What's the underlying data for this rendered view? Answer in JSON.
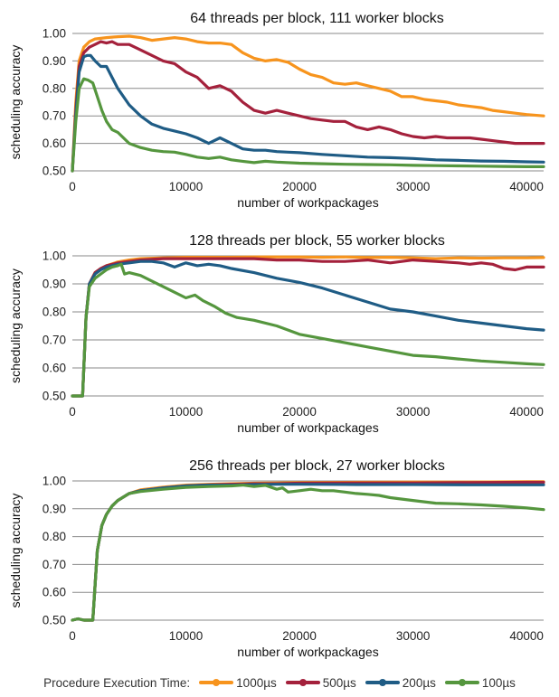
{
  "chart_data": [
    {
      "type": "line",
      "title": "64 threads per block, 111 worker blocks",
      "xlabel": "number of workpackages",
      "ylabel": "scheduling accuracy",
      "xlim": [
        0,
        41500
      ],
      "ylim": [
        0.5,
        1.0
      ],
      "xticks": [
        "0",
        "10000",
        "20000",
        "30000",
        "40000"
      ],
      "yticks": [
        "0.50",
        "0.60",
        "0.70",
        "0.80",
        "0.90",
        "1.00"
      ],
      "grid": true,
      "series": [
        {
          "name": "1000µs",
          "x": [
            0,
            300,
            600,
            1000,
            1500,
            2000,
            3000,
            4000,
            5000,
            6000,
            7000,
            8000,
            9000,
            10000,
            11000,
            12000,
            13000,
            14000,
            15000,
            16000,
            17000,
            18000,
            19000,
            20000,
            21000,
            22000,
            23000,
            24000,
            25000,
            26000,
            27000,
            28000,
            29000,
            30000,
            31000,
            32000,
            33000,
            34000,
            35000,
            36000,
            37000,
            38000,
            39000,
            40000,
            41500
          ],
          "y": [
            0.5,
            0.75,
            0.9,
            0.95,
            0.97,
            0.98,
            0.985,
            0.988,
            0.99,
            0.985,
            0.975,
            0.98,
            0.985,
            0.98,
            0.97,
            0.965,
            0.965,
            0.96,
            0.93,
            0.91,
            0.9,
            0.905,
            0.895,
            0.87,
            0.85,
            0.84,
            0.82,
            0.815,
            0.82,
            0.81,
            0.8,
            0.79,
            0.77,
            0.77,
            0.76,
            0.755,
            0.75,
            0.74,
            0.735,
            0.73,
            0.72,
            0.715,
            0.71,
            0.705,
            0.7
          ]
        },
        {
          "name": "500µs",
          "x": [
            0,
            300,
            600,
            1000,
            1500,
            2000,
            2500,
            3000,
            3500,
            4000,
            5000,
            6000,
            7000,
            8000,
            9000,
            10000,
            11000,
            12000,
            13000,
            14000,
            15000,
            16000,
            17000,
            18000,
            19000,
            20000,
            21000,
            22000,
            23000,
            24000,
            25000,
            26000,
            27000,
            28000,
            29000,
            30000,
            31000,
            32000,
            33000,
            34000,
            35000,
            36000,
            37000,
            38000,
            39000,
            40000,
            41500
          ],
          "y": [
            0.5,
            0.72,
            0.88,
            0.93,
            0.95,
            0.96,
            0.97,
            0.965,
            0.97,
            0.96,
            0.96,
            0.94,
            0.92,
            0.9,
            0.89,
            0.86,
            0.84,
            0.8,
            0.81,
            0.79,
            0.75,
            0.72,
            0.71,
            0.72,
            0.71,
            0.7,
            0.69,
            0.685,
            0.68,
            0.68,
            0.66,
            0.65,
            0.66,
            0.65,
            0.635,
            0.625,
            0.62,
            0.625,
            0.62,
            0.62,
            0.62,
            0.615,
            0.61,
            0.605,
            0.6,
            0.6,
            0.6
          ]
        },
        {
          "name": "200µs",
          "x": [
            0,
            300,
            600,
            1000,
            1300,
            1600,
            2000,
            2500,
            3000,
            3500,
            4000,
            5000,
            6000,
            7000,
            8000,
            9000,
            10000,
            11000,
            12000,
            13000,
            14000,
            15000,
            16000,
            17000,
            18000,
            19000,
            20000,
            22000,
            24000,
            26000,
            28000,
            30000,
            32000,
            34000,
            36000,
            38000,
            40000,
            41500
          ],
          "y": [
            0.5,
            0.7,
            0.86,
            0.915,
            0.92,
            0.92,
            0.9,
            0.88,
            0.88,
            0.84,
            0.8,
            0.74,
            0.7,
            0.67,
            0.655,
            0.645,
            0.635,
            0.62,
            0.6,
            0.62,
            0.6,
            0.58,
            0.575,
            0.575,
            0.57,
            0.568,
            0.566,
            0.56,
            0.555,
            0.55,
            0.548,
            0.545,
            0.54,
            0.538,
            0.536,
            0.535,
            0.533,
            0.532
          ]
        },
        {
          "name": "100µs",
          "x": [
            0,
            300,
            600,
            1000,
            1400,
            1800,
            2200,
            2600,
            3000,
            3500,
            4000,
            5000,
            6000,
            7000,
            8000,
            9000,
            10000,
            11000,
            12000,
            13000,
            14000,
            15000,
            16000,
            17000,
            18000,
            20000,
            22000,
            24000,
            26000,
            28000,
            30000,
            32000,
            34000,
            36000,
            38000,
            40000,
            41500
          ],
          "y": [
            0.5,
            0.68,
            0.8,
            0.835,
            0.83,
            0.82,
            0.77,
            0.72,
            0.68,
            0.65,
            0.64,
            0.6,
            0.585,
            0.575,
            0.57,
            0.568,
            0.56,
            0.55,
            0.545,
            0.55,
            0.54,
            0.535,
            0.53,
            0.535,
            0.532,
            0.528,
            0.526,
            0.524,
            0.523,
            0.522,
            0.52,
            0.519,
            0.518,
            0.517,
            0.516,
            0.515,
            0.515
          ]
        }
      ]
    },
    {
      "type": "line",
      "title": "128 threads per block, 55 worker blocks",
      "xlabel": "number of workpackages",
      "ylabel": "scheduling accuracy",
      "xlim": [
        0,
        41500
      ],
      "ylim": [
        0.5,
        1.0
      ],
      "xticks": [
        "0",
        "10000",
        "20000",
        "30000",
        "40000"
      ],
      "yticks": [
        "0.50",
        "0.60",
        "0.70",
        "0.80",
        "0.90",
        "1.00"
      ],
      "grid": true,
      "series": [
        {
          "name": "1000µs",
          "x": [
            0,
            900,
            1200,
            1500,
            2000,
            2500,
            3000,
            4000,
            5000,
            6000,
            8000,
            10000,
            12000,
            14000,
            16000,
            18000,
            20000,
            22000,
            24000,
            26000,
            28000,
            30000,
            32000,
            34000,
            36000,
            38000,
            40000,
            41500
          ],
          "y": [
            0.5,
            0.5,
            0.78,
            0.9,
            0.94,
            0.955,
            0.965,
            0.978,
            0.985,
            0.99,
            0.993,
            0.995,
            0.995,
            0.995,
            0.996,
            0.996,
            0.996,
            0.995,
            0.996,
            0.994,
            0.995,
            0.993,
            0.99,
            0.993,
            0.992,
            0.993,
            0.993,
            0.994
          ]
        },
        {
          "name": "500µs",
          "x": [
            0,
            900,
            1200,
            1500,
            2000,
            2500,
            3000,
            4000,
            5000,
            6000,
            8000,
            10000,
            12000,
            14000,
            16000,
            18000,
            20000,
            22000,
            24000,
            26000,
            28000,
            30000,
            32000,
            34000,
            35000,
            36000,
            37000,
            38000,
            39000,
            40000,
            41500
          ],
          "y": [
            0.5,
            0.5,
            0.78,
            0.9,
            0.94,
            0.955,
            0.965,
            0.975,
            0.98,
            0.985,
            0.99,
            0.99,
            0.99,
            0.99,
            0.99,
            0.985,
            0.985,
            0.98,
            0.98,
            0.985,
            0.975,
            0.985,
            0.98,
            0.975,
            0.97,
            0.975,
            0.97,
            0.955,
            0.95,
            0.96,
            0.96
          ]
        },
        {
          "name": "200µs",
          "x": [
            0,
            900,
            1200,
            1500,
            2000,
            2500,
            3000,
            4000,
            5000,
            6000,
            7000,
            8000,
            9000,
            10000,
            11000,
            12000,
            13000,
            14000,
            16000,
            18000,
            20000,
            22000,
            24000,
            26000,
            28000,
            30000,
            32000,
            34000,
            36000,
            38000,
            40000,
            41500
          ],
          "y": [
            0.5,
            0.5,
            0.78,
            0.9,
            0.935,
            0.95,
            0.96,
            0.97,
            0.975,
            0.98,
            0.98,
            0.975,
            0.96,
            0.975,
            0.965,
            0.97,
            0.965,
            0.955,
            0.94,
            0.92,
            0.905,
            0.885,
            0.86,
            0.835,
            0.81,
            0.8,
            0.785,
            0.77,
            0.76,
            0.75,
            0.74,
            0.735
          ]
        },
        {
          "name": "100µs",
          "x": [
            0,
            900,
            1200,
            1500,
            2000,
            2500,
            3000,
            3500,
            4000,
            4300,
            4600,
            5000,
            6000,
            7000,
            8000,
            9000,
            10000,
            10800,
            11500,
            12500,
            13500,
            14500,
            16000,
            18000,
            20000,
            22000,
            24000,
            26000,
            28000,
            30000,
            32000,
            34000,
            36000,
            38000,
            40000,
            41500
          ],
          "y": [
            0.5,
            0.5,
            0.78,
            0.89,
            0.92,
            0.935,
            0.95,
            0.96,
            0.965,
            0.97,
            0.935,
            0.94,
            0.93,
            0.91,
            0.89,
            0.87,
            0.85,
            0.86,
            0.84,
            0.82,
            0.795,
            0.78,
            0.77,
            0.75,
            0.72,
            0.705,
            0.69,
            0.675,
            0.66,
            0.645,
            0.64,
            0.632,
            0.625,
            0.62,
            0.615,
            0.612
          ]
        }
      ]
    },
    {
      "type": "line",
      "title": "256 threads per block, 27 worker blocks",
      "xlabel": "number of workpackages",
      "ylabel": "scheduling accuracy",
      "xlim": [
        0,
        41500
      ],
      "ylim": [
        0.5,
        1.0
      ],
      "xticks": [
        "0",
        "10000",
        "20000",
        "30000",
        "40000"
      ],
      "yticks": [
        "0.50",
        "0.60",
        "0.70",
        "0.80",
        "0.90",
        "1.00"
      ],
      "grid": true,
      "series": [
        {
          "name": "1000µs",
          "x": [
            0,
            500,
            1000,
            1800,
            2200,
            2600,
            3000,
            3500,
            4000,
            5000,
            6000,
            8000,
            10000,
            12000,
            14000,
            16000,
            18000,
            20000,
            25000,
            30000,
            35000,
            40000,
            41500
          ],
          "y": [
            0.5,
            0.505,
            0.5,
            0.5,
            0.75,
            0.84,
            0.88,
            0.91,
            0.93,
            0.955,
            0.968,
            0.978,
            0.985,
            0.988,
            0.99,
            0.992,
            0.993,
            0.994,
            0.995,
            0.996,
            0.996,
            0.997,
            0.997
          ]
        },
        {
          "name": "500µs",
          "x": [
            0,
            500,
            1000,
            1800,
            2200,
            2600,
            3000,
            3500,
            4000,
            5000,
            6000,
            8000,
            10000,
            12000,
            14000,
            16000,
            18000,
            20000,
            25000,
            30000,
            35000,
            40000,
            41500
          ],
          "y": [
            0.5,
            0.505,
            0.5,
            0.5,
            0.75,
            0.84,
            0.88,
            0.91,
            0.93,
            0.955,
            0.965,
            0.975,
            0.982,
            0.986,
            0.988,
            0.99,
            0.99,
            0.992,
            0.993,
            0.993,
            0.994,
            0.995,
            0.995
          ]
        },
        {
          "name": "200µs",
          "x": [
            0,
            500,
            1000,
            1800,
            2200,
            2600,
            3000,
            3500,
            4000,
            5000,
            6000,
            8000,
            10000,
            12000,
            14000,
            16000,
            18000,
            20000,
            25000,
            30000,
            35000,
            40000,
            41500
          ],
          "y": [
            0.5,
            0.505,
            0.5,
            0.5,
            0.75,
            0.84,
            0.88,
            0.91,
            0.93,
            0.955,
            0.965,
            0.975,
            0.982,
            0.985,
            0.985,
            0.987,
            0.988,
            0.988,
            0.987,
            0.987,
            0.986,
            0.986,
            0.986
          ]
        },
        {
          "name": "100µs",
          "x": [
            0,
            500,
            1000,
            1800,
            2200,
            2600,
            3000,
            3500,
            4000,
            5000,
            6000,
            8000,
            10000,
            12000,
            14000,
            15000,
            16000,
            17000,
            18000,
            18500,
            19000,
            20000,
            21000,
            22000,
            23000,
            24000,
            25000,
            26000,
            27000,
            28000,
            30000,
            32000,
            34000,
            36000,
            38000,
            40000,
            41500
          ],
          "y": [
            0.5,
            0.505,
            0.5,
            0.5,
            0.75,
            0.84,
            0.88,
            0.91,
            0.93,
            0.955,
            0.962,
            0.97,
            0.977,
            0.98,
            0.982,
            0.985,
            0.98,
            0.984,
            0.97,
            0.975,
            0.96,
            0.965,
            0.97,
            0.965,
            0.965,
            0.96,
            0.955,
            0.952,
            0.948,
            0.94,
            0.93,
            0.92,
            0.918,
            0.914,
            0.909,
            0.903,
            0.897
          ]
        }
      ]
    }
  ],
  "legend": {
    "label": "Procedure Execution Time:",
    "items": [
      {
        "name": "1000µs",
        "color": "#f7941d"
      },
      {
        "name": "500µs",
        "color": "#a4213c"
      },
      {
        "name": "200µs",
        "color": "#1f5c85"
      },
      {
        "name": "100µs",
        "color": "#55963e"
      }
    ]
  }
}
